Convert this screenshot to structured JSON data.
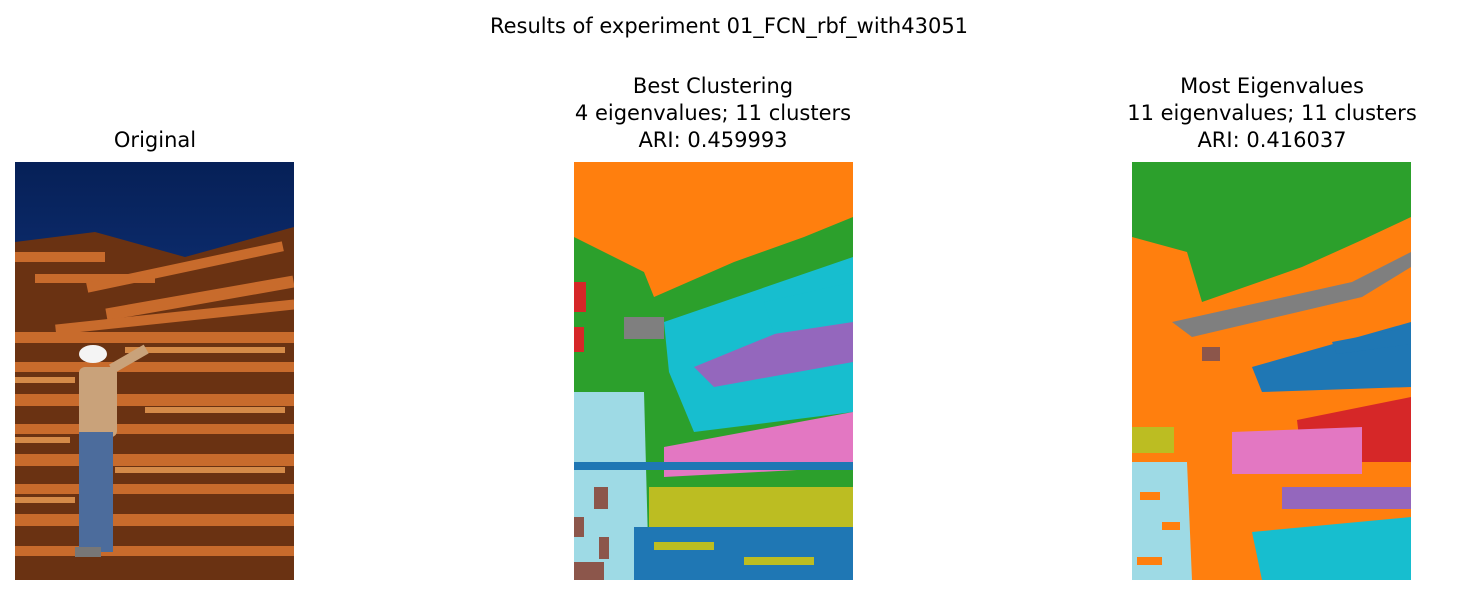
{
  "figure": {
    "suptitle": "Results of experiment 01_FCN_rbf_with43051"
  },
  "panels": [
    {
      "id": "original",
      "title_lines": [
        "Original"
      ]
    },
    {
      "id": "best",
      "title_lines": [
        "Best Clustering",
        "4 eigenvalues; 11 clusters",
        "ARI: 0.459993"
      ]
    },
    {
      "id": "most",
      "title_lines": [
        "Most Eigenvalues",
        "11 eigenvalues; 11 clusters",
        "ARI: 0.416037"
      ]
    }
  ],
  "colors": {
    "tab_blue": "#1f77b4",
    "tab_orange": "#ff7f0e",
    "tab_green": "#2ca02c",
    "tab_red": "#d62728",
    "tab_purple": "#9467bd",
    "tab_brown": "#8c564b",
    "tab_pink": "#e377c2",
    "tab_gray": "#7f7f7f",
    "tab_olive": "#bcbd22",
    "tab_cyan": "#17becf",
    "light_blue": "#9edae5",
    "sky_dark": "#0a2a6e",
    "wood": "#b8642a"
  }
}
